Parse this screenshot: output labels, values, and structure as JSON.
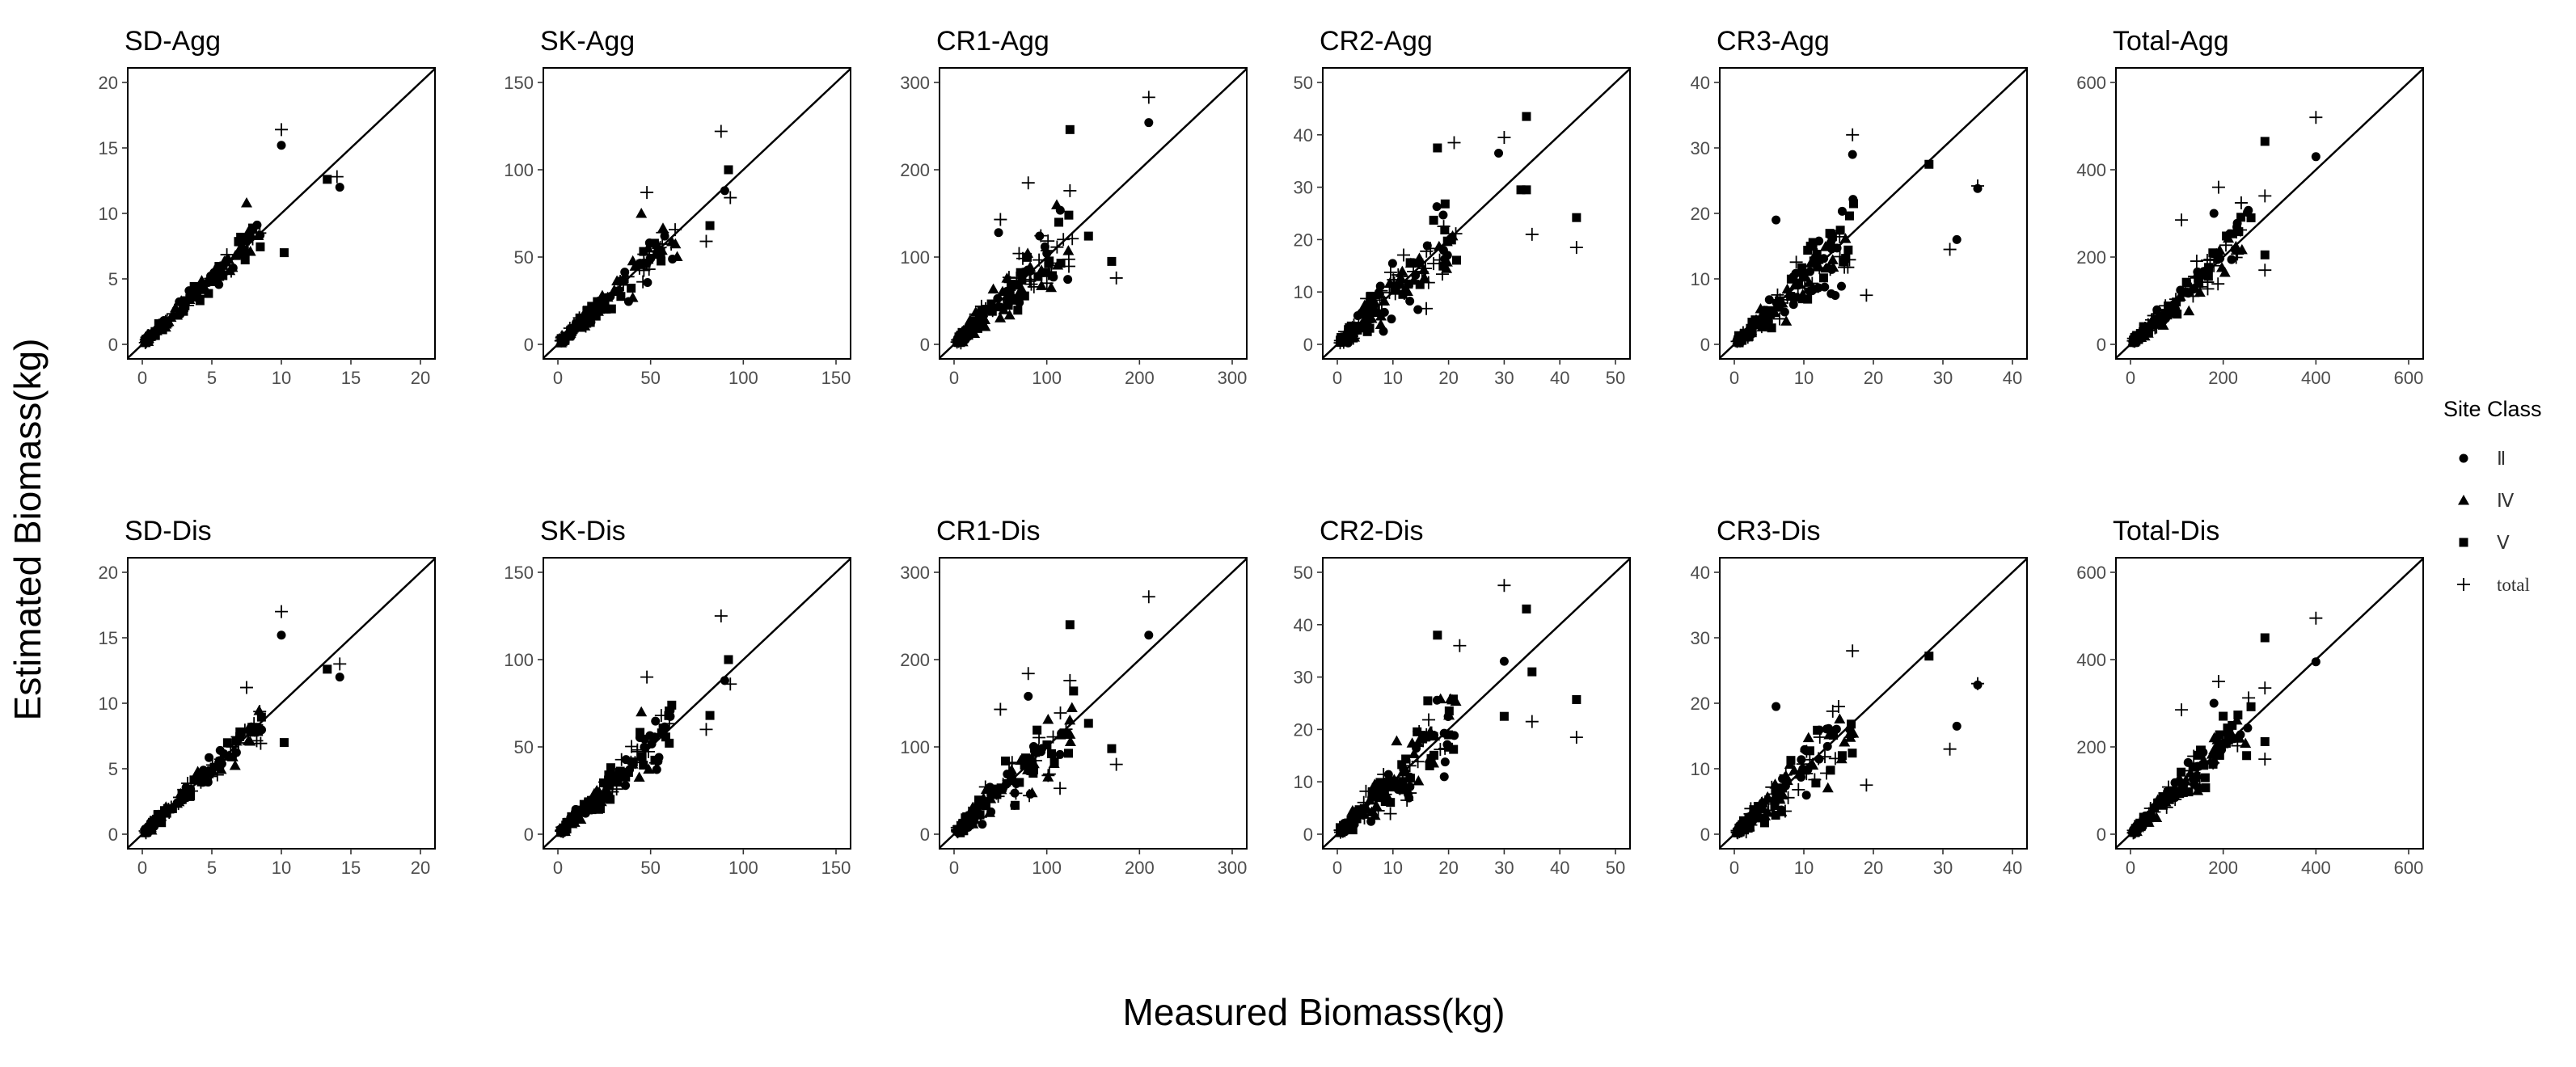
{
  "chart_data": {
    "type": "scatter",
    "xlabel": "Measured Biomass(kg)",
    "ylabel": "Estimated Biomass(kg)",
    "legend": {
      "title": "Site Class",
      "position": "right",
      "entries": [
        {
          "label": "Ⅱ",
          "marker": "circle"
        },
        {
          "label": "Ⅳ",
          "marker": "triangle"
        },
        {
          "label": "Ⅴ",
          "marker": "square"
        },
        {
          "label": "total",
          "marker": "plus"
        }
      ]
    },
    "panels": [
      {
        "title": "SD-Agg",
        "lim": [
          0,
          20
        ],
        "ticks": [
          0,
          5,
          10,
          15,
          20
        ],
        "scale": 20,
        "seed": 11,
        "n": 150,
        "spread": 0.14,
        "extra": [
          [
            10,
            15.2,
            "circle"
          ],
          [
            10,
            16.4,
            "plus"
          ],
          [
            13.3,
            12.6,
            "square"
          ],
          [
            14.2,
            12.0,
            "circle"
          ],
          [
            14.0,
            12.8,
            "plus"
          ],
          [
            10.2,
            7.0,
            "square"
          ],
          [
            7.5,
            10.8,
            "triangle"
          ]
        ]
      },
      {
        "title": "SK-Agg",
        "lim": [
          0,
          150
        ],
        "ticks": [
          0,
          50,
          100,
          150
        ],
        "scale": 150,
        "seed": 23,
        "n": 150,
        "spread": 0.22,
        "extra": [
          [
            88,
            122,
            "plus"
          ],
          [
            90,
            88,
            "circle"
          ],
          [
            92,
            100,
            "square"
          ],
          [
            93,
            84,
            "plus"
          ],
          [
            82,
            68,
            "square"
          ],
          [
            80,
            59,
            "plus"
          ],
          [
            48,
            87,
            "plus"
          ],
          [
            45,
            75,
            "triangle"
          ]
        ]
      },
      {
        "title": "CR1-Agg",
        "lim": [
          0,
          300
        ],
        "ticks": [
          0,
          100,
          200,
          300
        ],
        "scale": 300,
        "seed": 37,
        "n": 150,
        "spread": 0.38,
        "extra": [
          [
            210,
            283,
            "plus"
          ],
          [
            210,
            254,
            "circle"
          ],
          [
            125,
            246,
            "square"
          ],
          [
            125,
            176,
            "plus"
          ],
          [
            145,
            124,
            "square"
          ],
          [
            170,
            95,
            "square"
          ],
          [
            175,
            76,
            "plus"
          ],
          [
            80,
            185,
            "plus"
          ],
          [
            50,
            143,
            "plus"
          ],
          [
            48,
            128,
            "circle"
          ]
        ]
      },
      {
        "title": "CR2-Agg",
        "lim": [
          0,
          50
        ],
        "ticks": [
          0,
          10,
          20,
          30,
          40,
          50
        ],
        "scale": 50,
        "seed": 41,
        "n": 170,
        "spread": 0.45,
        "extra": [
          [
            34,
            43.5,
            "square"
          ],
          [
            30,
            39.5,
            "plus"
          ],
          [
            43,
            24.2,
            "square"
          ],
          [
            43,
            18.5,
            "plus"
          ],
          [
            18,
            37.5,
            "square"
          ],
          [
            21,
            38.5,
            "plus"
          ],
          [
            34,
            29.5,
            "square"
          ],
          [
            35,
            21,
            "plus"
          ],
          [
            29,
            36.5,
            "circle"
          ],
          [
            33,
            29.5,
            "square"
          ]
        ]
      },
      {
        "title": "CR3-Agg",
        "lim": [
          0,
          40
        ],
        "ticks": [
          0,
          10,
          20,
          30,
          40
        ],
        "scale": 40,
        "seed": 53,
        "n": 170,
        "spread": 0.38,
        "extra": [
          [
            28,
            27.5,
            "square"
          ],
          [
            35,
            24.2,
            "plus"
          ],
          [
            35,
            23.8,
            "circle"
          ],
          [
            32,
            16,
            "circle"
          ],
          [
            31,
            14.5,
            "plus"
          ],
          [
            17,
            32,
            "plus"
          ],
          [
            17,
            29,
            "circle"
          ],
          [
            6,
            19,
            "circle"
          ],
          [
            19,
            7.5,
            "plus"
          ]
        ]
      },
      {
        "title": "Total-Agg",
        "lim": [
          0,
          600
        ],
        "ticks": [
          0,
          200,
          400,
          600
        ],
        "scale": 600,
        "seed": 67,
        "n": 160,
        "spread": 0.25,
        "extra": [
          [
            400,
            520,
            "plus"
          ],
          [
            400,
            430,
            "circle"
          ],
          [
            290,
            465,
            "square"
          ],
          [
            290,
            340,
            "plus"
          ],
          [
            290,
            205,
            "square"
          ],
          [
            290,
            170,
            "plus"
          ],
          [
            190,
            360,
            "plus"
          ],
          [
            180,
            300,
            "circle"
          ],
          [
            260,
            290,
            "square"
          ],
          [
            110,
            285,
            "plus"
          ]
        ]
      },
      {
        "title": "SD-Dis",
        "lim": [
          0,
          20
        ],
        "ticks": [
          0,
          5,
          10,
          15,
          20
        ],
        "scale": 20,
        "seed": 13,
        "n": 150,
        "spread": 0.14,
        "extra": [
          [
            10,
            15.2,
            "circle"
          ],
          [
            10,
            17.0,
            "plus"
          ],
          [
            13.3,
            12.6,
            "square"
          ],
          [
            14.2,
            12.0,
            "circle"
          ],
          [
            14.2,
            13.0,
            "plus"
          ],
          [
            10.2,
            7.0,
            "square"
          ],
          [
            7.5,
            11.2,
            "plus"
          ]
        ]
      },
      {
        "title": "SK-Dis",
        "lim": [
          0,
          150
        ],
        "ticks": [
          0,
          50,
          100,
          150
        ],
        "scale": 150,
        "seed": 29,
        "n": 150,
        "spread": 0.22,
        "extra": [
          [
            88,
            125,
            "plus"
          ],
          [
            90,
            88,
            "circle"
          ],
          [
            92,
            100,
            "square"
          ],
          [
            93,
            86,
            "plus"
          ],
          [
            82,
            68,
            "square"
          ],
          [
            80,
            60,
            "plus"
          ],
          [
            48,
            90,
            "plus"
          ],
          [
            45,
            70,
            "triangle"
          ]
        ]
      },
      {
        "title": "CR1-Dis",
        "lim": [
          0,
          300
        ],
        "ticks": [
          0,
          100,
          200,
          300
        ],
        "scale": 300,
        "seed": 43,
        "n": 150,
        "spread": 0.38,
        "extra": [
          [
            210,
            272,
            "plus"
          ],
          [
            210,
            228,
            "circle"
          ],
          [
            125,
            240,
            "square"
          ],
          [
            125,
            176,
            "plus"
          ],
          [
            145,
            127,
            "square"
          ],
          [
            170,
            98,
            "square"
          ],
          [
            175,
            80,
            "plus"
          ],
          [
            80,
            184,
            "plus"
          ],
          [
            50,
            143,
            "plus"
          ],
          [
            80,
            158,
            "circle"
          ]
        ]
      },
      {
        "title": "CR2-Dis",
        "lim": [
          0,
          50
        ],
        "ticks": [
          0,
          10,
          20,
          30,
          40,
          50
        ],
        "scale": 50,
        "seed": 47,
        "n": 170,
        "spread": 0.45,
        "extra": [
          [
            30,
            47.5,
            "plus"
          ],
          [
            34,
            43,
            "square"
          ],
          [
            43,
            25.7,
            "square"
          ],
          [
            43,
            18.5,
            "plus"
          ],
          [
            18,
            38,
            "square"
          ],
          [
            22,
            36,
            "plus"
          ],
          [
            35,
            31,
            "square"
          ],
          [
            35,
            21.5,
            "plus"
          ],
          [
            30,
            33,
            "circle"
          ],
          [
            30,
            22.5,
            "square"
          ]
        ]
      },
      {
        "title": "CR3-Dis",
        "lim": [
          0,
          40
        ],
        "ticks": [
          0,
          10,
          20,
          30,
          40
        ],
        "scale": 40,
        "seed": 59,
        "n": 170,
        "spread": 0.38,
        "extra": [
          [
            28,
            27.2,
            "square"
          ],
          [
            35,
            23,
            "plus"
          ],
          [
            35,
            22.8,
            "circle"
          ],
          [
            32,
            16.5,
            "circle"
          ],
          [
            31,
            13,
            "plus"
          ],
          [
            17,
            28,
            "plus"
          ],
          [
            6,
            19.5,
            "circle"
          ],
          [
            19,
            7.5,
            "plus"
          ],
          [
            15,
            19.5,
            "plus"
          ]
        ]
      },
      {
        "title": "Total-Dis",
        "lim": [
          0,
          600
        ],
        "ticks": [
          0,
          200,
          400,
          600
        ],
        "scale": 600,
        "seed": 71,
        "n": 160,
        "spread": 0.25,
        "extra": [
          [
            400,
            495,
            "plus"
          ],
          [
            400,
            395,
            "circle"
          ],
          [
            290,
            450,
            "square"
          ],
          [
            290,
            335,
            "plus"
          ],
          [
            290,
            212,
            "square"
          ],
          [
            290,
            172,
            "plus"
          ],
          [
            190,
            350,
            "plus"
          ],
          [
            180,
            300,
            "circle"
          ],
          [
            260,
            292,
            "square"
          ],
          [
            110,
            285,
            "plus"
          ]
        ]
      }
    ]
  }
}
